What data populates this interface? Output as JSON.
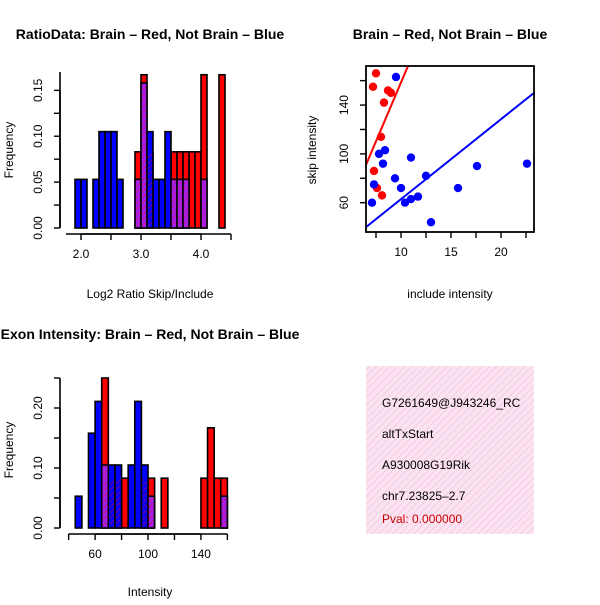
{
  "colors": {
    "red": "#ff0000",
    "blue": "#0000ff",
    "purple": "#a020f0",
    "info_bg": "#f4cde6",
    "pval": "#cc0000"
  },
  "chart_data": [
    {
      "id": "ratio",
      "type": "bar",
      "title": "RatioData: Brain – Red, Not Brain – Blue",
      "xlabel": "Log2 Ratio Skip/Include",
      "ylabel": "Frequency",
      "xlim": [
        1.75,
        4.55
      ],
      "ylim": [
        0,
        0.17
      ],
      "xticks": [
        2.0,
        3.0,
        4.0
      ],
      "xtick_labels": [
        "2.0",
        "3.0",
        "4.0"
      ],
      "yticks": [
        0,
        0.05,
        0.1,
        0.15
      ],
      "ytick_labels": [
        "0.00",
        "0.05",
        "0.10",
        "0.15"
      ],
      "bin_width": 0.1,
      "series": [
        {
          "name": "Brain",
          "color": "red",
          "bins": [
            [
              2.9,
              3.0,
              0.083
            ],
            [
              3.0,
              3.1,
              0.167
            ],
            [
              3.1,
              3.2,
              0.083
            ],
            [
              3.5,
              3.6,
              0.083
            ],
            [
              3.6,
              3.7,
              0.083
            ],
            [
              3.7,
              3.8,
              0.083
            ],
            [
              3.8,
              3.9,
              0.083
            ],
            [
              3.9,
              4.0,
              0.083
            ],
            [
              4.0,
              4.1,
              0.167
            ],
            [
              4.3,
              4.4,
              0.167
            ]
          ]
        },
        {
          "name": "Not Brain",
          "color": "blue",
          "bins": [
            [
              1.9,
              2.0,
              0.053
            ],
            [
              2.0,
              2.1,
              0.053
            ],
            [
              2.2,
              2.3,
              0.053
            ],
            [
              2.3,
              2.4,
              0.105
            ],
            [
              2.4,
              2.5,
              0.105
            ],
            [
              2.5,
              2.6,
              0.105
            ],
            [
              2.6,
              2.7,
              0.053
            ],
            [
              2.9,
              3.0,
              0.053
            ],
            [
              3.0,
              3.1,
              0.158
            ],
            [
              3.1,
              3.2,
              0.105
            ],
            [
              3.2,
              3.3,
              0.053
            ],
            [
              3.3,
              3.4,
              0.053
            ],
            [
              3.4,
              3.5,
              0.105
            ],
            [
              3.5,
              3.6,
              0.053
            ],
            [
              3.6,
              3.7,
              0.053
            ],
            [
              3.7,
              3.8,
              0.053
            ],
            [
              4.0,
              4.1,
              0.053
            ]
          ]
        }
      ]
    },
    {
      "id": "scatter",
      "type": "scatter",
      "title": "Brain – Red, Not Brain – Blue",
      "xlabel": "include intensity",
      "ylabel": "skip intensity",
      "xlim": [
        6.5,
        23.3
      ],
      "ylim": [
        36,
        172
      ],
      "xticks": [
        10,
        15,
        20
      ],
      "xtick_labels": [
        "10",
        "15",
        "20"
      ],
      "yticks": [
        60,
        100,
        140
      ],
      "ytick_labels": [
        "60",
        "100",
        "140"
      ],
      "series": [
        {
          "name": "Brain",
          "color": "red",
          "points": [
            [
              7.2,
              155
            ],
            [
              7.5,
              166
            ],
            [
              8.3,
              142
            ],
            [
              8.7,
              152
            ],
            [
              9.0,
              150
            ],
            [
              8.0,
              114
            ],
            [
              7.3,
              86
            ],
            [
              7.6,
              72
            ],
            [
              8.1,
              66
            ]
          ]
        },
        {
          "name": "Not Brain",
          "color": "blue",
          "points": [
            [
              7.1,
              60
            ],
            [
              7.3,
              75
            ],
            [
              7.8,
              100
            ],
            [
              8.2,
              92
            ],
            [
              8.4,
              103
            ],
            [
              9.5,
              163
            ],
            [
              9.4,
              80
            ],
            [
              10.0,
              72
            ],
            [
              10.4,
              60
            ],
            [
              11.0,
              63
            ],
            [
              11.0,
              97
            ],
            [
              11.7,
              65
            ],
            [
              12.5,
              82
            ],
            [
              13.0,
              44
            ],
            [
              15.7,
              72
            ],
            [
              17.6,
              90
            ],
            [
              22.6,
              92
            ]
          ]
        }
      ],
      "fit_lines": [
        {
          "name": "Brain",
          "color": "red",
          "from": [
            6.5,
            91
          ],
          "to": [
            10.7,
            172
          ]
        },
        {
          "name": "Not Brain",
          "color": "blue",
          "from": [
            6.5,
            40
          ],
          "to": [
            23.3,
            150
          ]
        }
      ]
    },
    {
      "id": "intensity",
      "type": "bar",
      "title": "Exon Intensity: Brain – Red, Not Brain – Blue",
      "xlabel": "Intensity",
      "ylabel": "Frequency",
      "xlim": [
        38,
        165
      ],
      "ylim": [
        0,
        0.26
      ],
      "xticks": [
        60,
        100,
        140
      ],
      "xtick_labels": [
        "60",
        "100",
        "140"
      ],
      "yticks": [
        0,
        0.1,
        0.2
      ],
      "ytick_labels": [
        "0.00",
        "0.10",
        "0.20"
      ],
      "bin_width": 5,
      "series": [
        {
          "name": "Brain",
          "color": "red",
          "bins": [
            [
              65,
              70,
              0.25
            ],
            [
              70,
              75,
              0.083
            ],
            [
              75,
              80,
              0.083
            ],
            [
              80,
              85,
              0.083
            ],
            [
              95,
              100,
              0.083
            ],
            [
              100,
              105,
              0.083
            ],
            [
              110,
              115,
              0.083
            ],
            [
              140,
              145,
              0.083
            ],
            [
              145,
              150,
              0.167
            ],
            [
              150,
              155,
              0.083
            ],
            [
              155,
              160,
              0.083
            ]
          ]
        },
        {
          "name": "Not Brain",
          "color": "blue",
          "bins": [
            [
              45,
              50,
              0.053
            ],
            [
              55,
              60,
              0.158
            ],
            [
              60,
              65,
              0.211
            ],
            [
              65,
              70,
              0.105
            ],
            [
              70,
              75,
              0.105
            ],
            [
              75,
              80,
              0.105
            ],
            [
              85,
              90,
              0.105
            ],
            [
              90,
              95,
              0.211
            ],
            [
              95,
              100,
              0.105
            ],
            [
              100,
              105,
              0.053
            ],
            [
              155,
              160,
              0.053
            ]
          ]
        }
      ]
    }
  ],
  "info": {
    "lines": [
      "G7261649@J943246_RC",
      "altTxStart",
      "A930008G19Rik",
      "chr7.23825–2.7"
    ],
    "pval": "Pval: 0.000000"
  }
}
